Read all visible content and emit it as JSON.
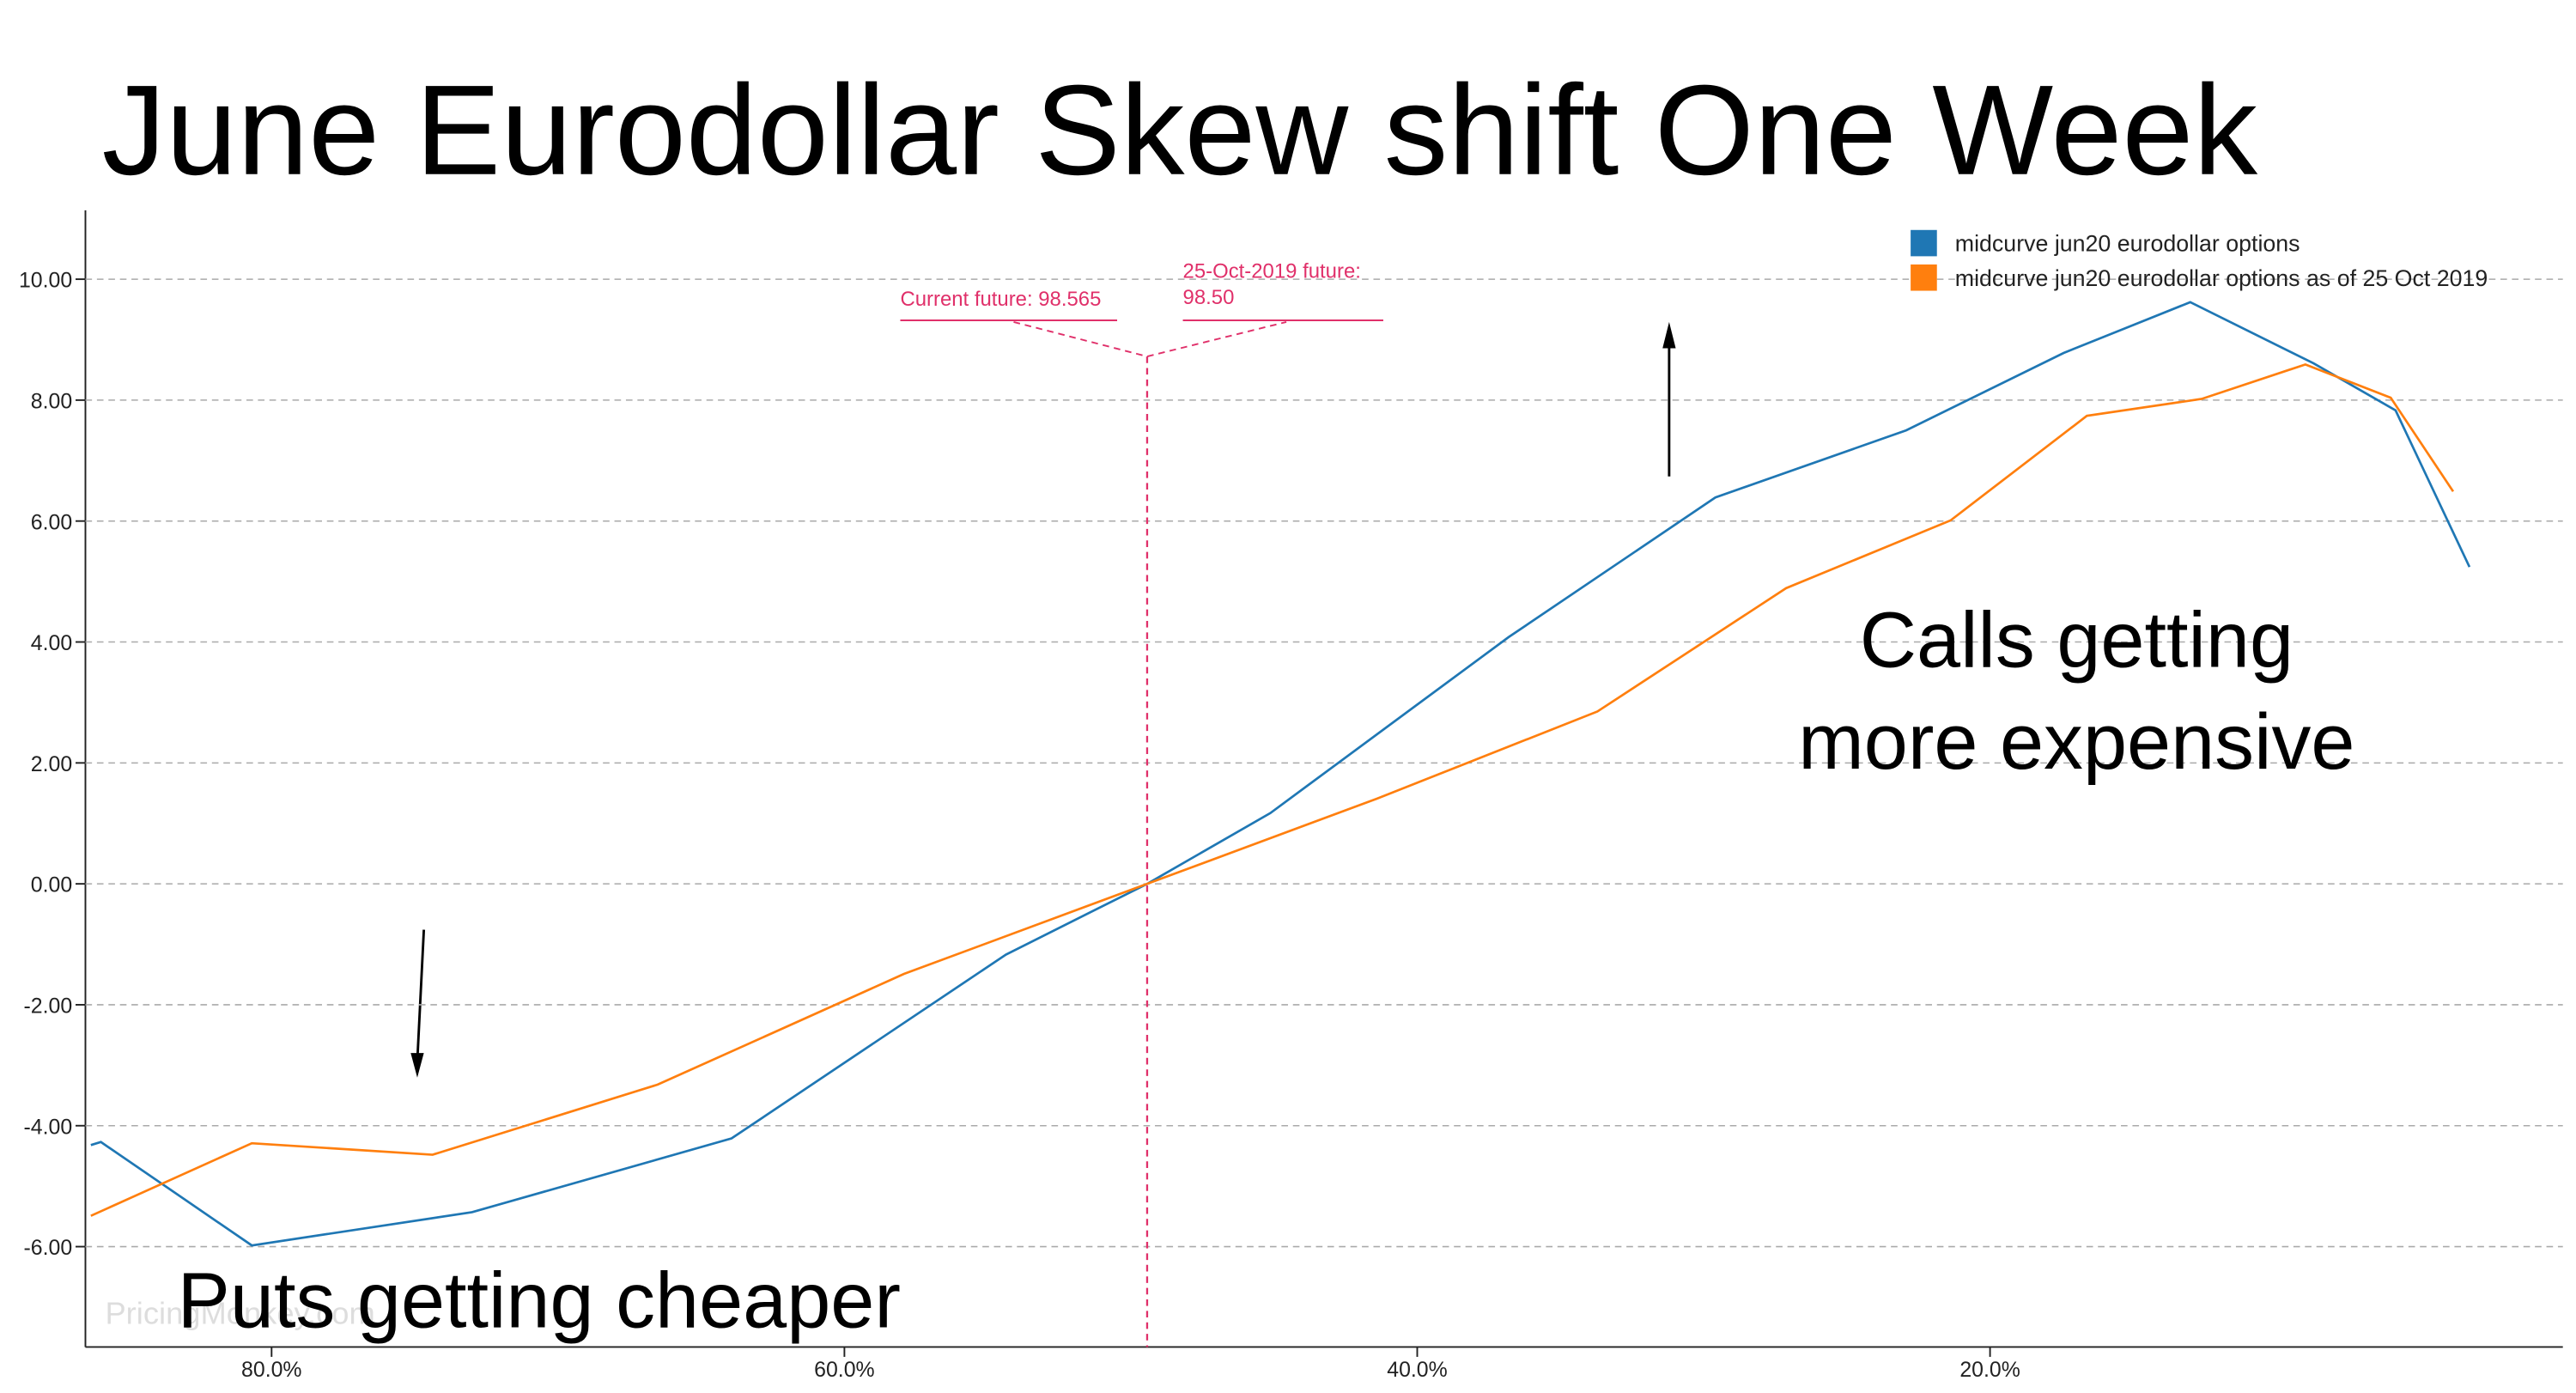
{
  "chart_data": {
    "type": "line",
    "title": "June Eurodollar Skew shift One Week",
    "xlim": [
      86.5,
      0
    ],
    "ylim": [
      -7.66,
      11.14
    ],
    "xticks": [
      {
        "value": 80,
        "label": "80.0%"
      },
      {
        "value": 60,
        "label": "60.0%"
      },
      {
        "value": 40,
        "label": "40.0%"
      },
      {
        "value": 20,
        "label": "20.0%"
      }
    ],
    "yticks": [
      {
        "value": 10,
        "label": "10.00"
      },
      {
        "value": 8,
        "label": "8.00"
      },
      {
        "value": 6,
        "label": "6.00"
      },
      {
        "value": 4,
        "label": "4.00"
      },
      {
        "value": 2,
        "label": "2.00"
      },
      {
        "value": 0,
        "label": "0.00"
      },
      {
        "value": -2,
        "label": "-2.00"
      },
      {
        "value": -4,
        "label": "-4.00"
      },
      {
        "value": -6,
        "label": "-6.00"
      }
    ],
    "grid": true,
    "legend": "top-right",
    "series": [
      {
        "name": "midcurve jun20 eurodollar options",
        "color": "#1f77b4",
        "x": [
          86.31,
          85.96,
          80.69,
          73.0,
          63.94,
          54.36,
          49.43,
          45.13,
          36.81,
          29.59,
          22.93,
          17.43,
          13.01,
          8.71,
          5.84,
          3.26
        ],
        "values": [
          -4.32,
          -4.27,
          -5.98,
          -5.43,
          -4.21,
          -1.17,
          0,
          1.17,
          4.08,
          6.39,
          7.5,
          8.78,
          9.62,
          8.61,
          7.83,
          5.24
        ]
      },
      {
        "name": "midcurve jun20 eurodollar options as of 25 Oct 2019",
        "color": "#ff7f0e",
        "x": [
          86.31,
          80.69,
          74.38,
          66.52,
          57.92,
          49.43,
          41.4,
          33.71,
          27.12,
          21.38,
          16.62,
          12.61,
          8.99,
          6.01,
          3.83
        ],
        "values": [
          -5.49,
          -4.29,
          -4.48,
          -3.32,
          -1.49,
          0,
          1.41,
          2.85,
          4.89,
          6.01,
          7.74,
          8.02,
          8.59,
          8.04,
          6.49
        ]
      }
    ],
    "marker_x": 49.43,
    "annotations": [
      {
        "lines": [
          "Current future: 98.565"
        ]
      },
      {
        "lines": [
          "25-Oct-2019 future:",
          "98.50"
        ]
      }
    ],
    "callouts": [
      {
        "lines": [
          "Calls getting",
          "more expensive"
        ]
      },
      {
        "lines": [
          "Puts getting cheaper"
        ]
      }
    ],
    "watermark": "PricingMonkey.com"
  }
}
